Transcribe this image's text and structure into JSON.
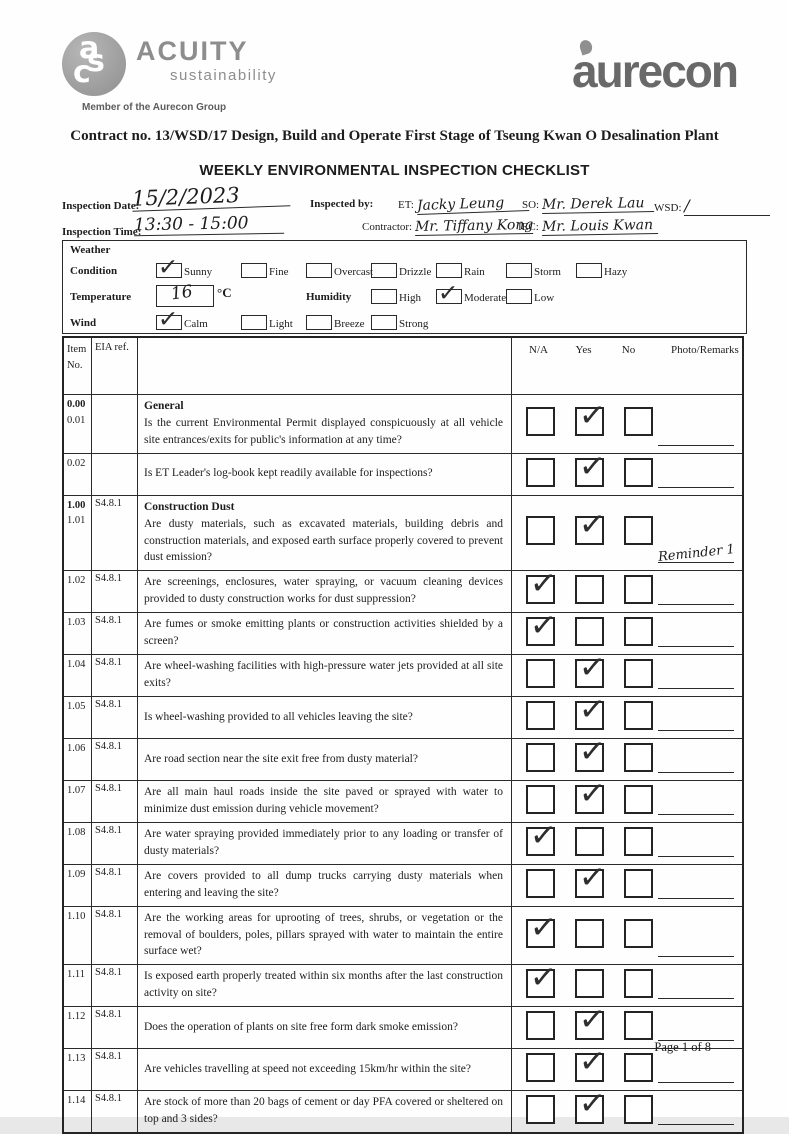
{
  "header": {
    "acuity_name": "ACUITY",
    "acuity_tagline": "sustainability",
    "acuity_member": "Member of the Aurecon Group",
    "acuity_monogram": "acs",
    "aurecon_name": "aurecon",
    "contract_title": "Contract no.  13/WSD/17 Design, Build and Operate First Stage of Tseung Kwan O Desalination Plant",
    "form_title": "WEEKLY ENVIRONMENTAL INSPECTION CHECKLIST",
    "logo_gray": "#8f8f8f",
    "aurecon_gray": "#696969"
  },
  "inspection_info": {
    "date_label": "Inspection Date:",
    "date_value": "15/2/2023",
    "time_label": "Inspection Time:",
    "time_value": "13:30 - 15:00",
    "inspected_by_label": "Inspected by:",
    "et_label": "ET:",
    "et_value": "Jacky Leung",
    "contractor_label": "Contractor:",
    "contractor_value": "Mr. Tiffany Kong",
    "so_label": "SO:",
    "so_value": "Mr. Derek Lau",
    "iec_label": "IEC:",
    "iec_value": "Mr. Louis Kwan",
    "wsd_label": "WSD:",
    "wsd_value": "/"
  },
  "weather": {
    "title": "Weather",
    "condition_label": "Condition",
    "condition_options": [
      {
        "label": "Sunny",
        "checked": true
      },
      {
        "label": "Fine",
        "checked": false
      },
      {
        "label": "Overcast",
        "checked": false
      },
      {
        "label": "Drizzle",
        "checked": false
      },
      {
        "label": "Rain",
        "checked": false
      },
      {
        "label": "Storm",
        "checked": false
      },
      {
        "label": "Hazy",
        "checked": false
      }
    ],
    "temperature_label": "Temperature",
    "temperature_value": "16",
    "temperature_unit": "°C",
    "humidity_label": "Humidity",
    "humidity_options": [
      {
        "label": "High",
        "checked": false
      },
      {
        "label": "Moderate",
        "checked": true
      },
      {
        "label": "Low",
        "checked": false
      }
    ],
    "wind_label": "Wind",
    "wind_options": [
      {
        "label": "Calm",
        "checked": true
      },
      {
        "label": "Light",
        "checked": false
      },
      {
        "label": "Breeze",
        "checked": false
      },
      {
        "label": "Strong",
        "checked": false
      }
    ]
  },
  "checklist": {
    "columns": {
      "item_line1": "Item",
      "item_line2": "No.",
      "eia": "EIA ref.",
      "na": "N/A",
      "yes": "Yes",
      "no": "No",
      "remarks": "Photo/Remarks"
    },
    "rows": [
      {
        "item": [
          "0.00",
          "0.01"
        ],
        "eia": "",
        "section": "General",
        "question": "Is the current Environmental Permit displayed conspicuously at all vehicle site entrances/exits for public's information at any time?",
        "answer": "yes",
        "remark": ""
      },
      {
        "item": [
          "0.02"
        ],
        "eia": "",
        "section": "",
        "question": "Is ET Leader's log-book kept readily available for inspections?",
        "answer": "yes",
        "remark": ""
      },
      {
        "item": [
          "1.00",
          "1.01"
        ],
        "eia": "S4.8.1",
        "section": "Construction Dust",
        "question": "Are dusty materials, such as excavated materials, building debris and construction materials, and exposed earth surface properly covered to prevent dust emission?",
        "answer": "yes",
        "remark": "Reminder 1"
      },
      {
        "item": [
          "1.02"
        ],
        "eia": "S4.8.1",
        "section": "",
        "question": "Are screenings, enclosures, water spraying, or vacuum cleaning devices provided to dusty construction works for dust suppression?",
        "answer": "na",
        "remark": ""
      },
      {
        "item": [
          "1.03"
        ],
        "eia": "S4.8.1",
        "section": "",
        "question": "Are fumes or smoke emitting plants or construction activities shielded by a screen?",
        "answer": "na",
        "remark": ""
      },
      {
        "item": [
          "1.04"
        ],
        "eia": "S4.8.1",
        "section": "",
        "question": "Are wheel-washing facilities with high-pressure water jets provided at all site exits?",
        "answer": "yes",
        "remark": ""
      },
      {
        "item": [
          "1.05"
        ],
        "eia": "S4.8.1",
        "section": "",
        "question": "Is wheel-washing provided to all vehicles leaving the site?",
        "answer": "yes",
        "remark": ""
      },
      {
        "item": [
          "1.06"
        ],
        "eia": "S4.8.1",
        "section": "",
        "question": "Are road section near the site exit free from dusty material?",
        "answer": "yes",
        "remark": ""
      },
      {
        "item": [
          "1.07"
        ],
        "eia": "S4.8.1",
        "section": "",
        "question": "Are all main haul roads inside the site paved or sprayed with water to minimize dust emission during vehicle movement?",
        "answer": "yes",
        "remark": ""
      },
      {
        "item": [
          "1.08"
        ],
        "eia": "S4.8.1",
        "section": "",
        "question": "Are water spraying provided immediately prior to any loading or transfer of dusty materials?",
        "answer": "na",
        "remark": ""
      },
      {
        "item": [
          "1.09"
        ],
        "eia": "S4.8.1",
        "section": "",
        "question": "Are covers provided to all dump trucks carrying dusty materials when entering and leaving the site?",
        "answer": "yes",
        "remark": ""
      },
      {
        "item": [
          "1.10"
        ],
        "eia": "S4.8.1",
        "section": "",
        "question": "Are the working areas for uprooting of trees, shrubs, or vegetation or the removal of boulders, poles, pillars sprayed with water to maintain the entire surface wet?",
        "answer": "na",
        "remark": ""
      },
      {
        "item": [
          "1.11"
        ],
        "eia": "S4.8.1",
        "section": "",
        "question": "Is exposed earth properly treated within six months after the last construction activity on site?",
        "answer": "na",
        "remark": ""
      },
      {
        "item": [
          "1.12"
        ],
        "eia": "S4.8.1",
        "section": "",
        "question": "Does the operation of plants on site free form dark smoke emission?",
        "answer": "yes",
        "remark": ""
      },
      {
        "item": [
          "1.13"
        ],
        "eia": "S4.8.1",
        "section": "",
        "question": "Are vehicles travelling at speed not exceeding 15km/hr within the site?",
        "answer": "yes",
        "remark": ""
      },
      {
        "item": [
          "1.14"
        ],
        "eia": "S4.8.1",
        "section": "",
        "question": "Are stock of more than 20 bags of cement or day PFA covered or sheltered on top and 3 sides?",
        "answer": "yes",
        "remark": ""
      }
    ]
  },
  "footer": {
    "page_label": "Page 1 of 8"
  }
}
